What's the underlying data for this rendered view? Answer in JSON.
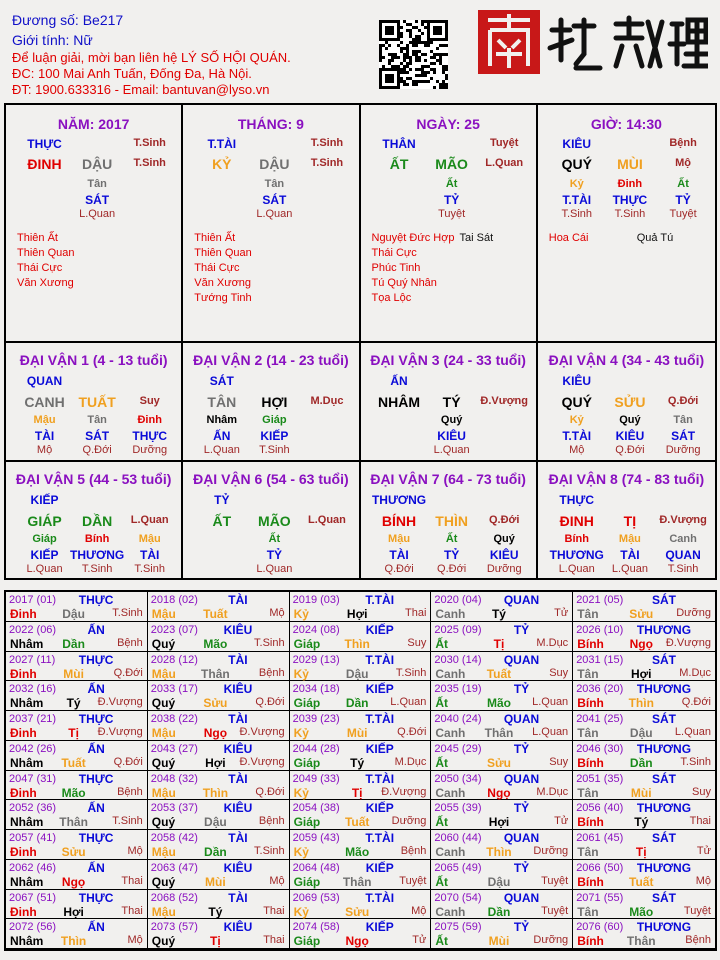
{
  "header": {
    "code": "Đương số: Be217",
    "gender": "Giới tính:   Nữ",
    "line1": "Để luận giải, mời bạn liên hệ LÝ SỐ HỘI QUÁN.",
    "line2": "ĐC: 100 Mai Anh Tuấn, Đống Đa, Hà Nội.",
    "line3": "ĐT: 1900.633316 - Email: bantuvan@lyso.vn",
    "logo_text": "南越數理",
    "qr_icon": "qr-code-icon"
  },
  "colors": {
    "god": "#0a0ad8",
    "stage": "#a02828",
    "title": "#8a10c0",
    "elements": {
      "đinh": "#e00000",
      "bính": "#e00000",
      "tị": "#e00000",
      "ngọ": "#e00000",
      "mậu": "#f0a020",
      "kỷ": "#f0a020",
      "thìn": "#f0a020",
      "tuất": "#f0a020",
      "sửu": "#f0a020",
      "mùi": "#f0a020",
      "canh": "#707070",
      "tân": "#707070",
      "thân": "#707070",
      "dậu": "#707070",
      "nhâm": "#000000",
      "quý": "#000000",
      "tý": "#000000",
      "hợi": "#000000",
      "giáp": "#1a8a1a",
      "ất": "#1a8a1a",
      "dần": "#1a8a1a",
      "mão": "#1a8a1a"
    }
  },
  "pillars": [
    {
      "title": "NĂM: 2017",
      "god": "THỰC",
      "stage_top": "T.Sinh",
      "stem": "ĐINH",
      "branch": "DẬU",
      "stage": "T.Sinh",
      "hidden": [
        {
          "stem": "Tân",
          "god": "SÁT",
          "stage": "L.Quan"
        }
      ],
      "stars_red": [
        "Thiên Ất",
        "Thiên Quan",
        "Thái Cực",
        "Văn Xương"
      ],
      "stars_black": []
    },
    {
      "title": "THÁNG: 9",
      "god": "T.TÀI",
      "stage_top": "T.Sinh",
      "stem": "KỶ",
      "branch": "DẬU",
      "stage": "T.Sinh",
      "hidden": [
        {
          "stem": "Tân",
          "god": "SÁT",
          "stage": "L.Quan"
        }
      ],
      "stars_red": [
        "Thiên Ất",
        "Thiên Quan",
        "Thái Cực",
        "Văn Xương",
        "Tướng Tinh"
      ],
      "stars_black": []
    },
    {
      "title": "NGÀY: 25",
      "god": "THÂN",
      "stage_top": "Tuyệt",
      "stem": "ẤT",
      "branch": "MÃO",
      "stage": "L.Quan",
      "hidden": [
        {
          "stem": "Ất",
          "god": "TỶ",
          "stage": "Tuyệt"
        }
      ],
      "stars_red": [
        "Nguyệt Đức Hợp",
        "Thái Cực",
        "Phúc Tinh",
        "Tú Quý Nhân",
        "Tọa Lộc"
      ],
      "stars_black": [
        "Tai Sát"
      ]
    },
    {
      "title": "GIỜ: 14:30",
      "god": "KIÊU",
      "stage_top": "Bệnh",
      "stem": "QUÝ",
      "branch": "MÙI",
      "stage": "Mộ",
      "hidden": [
        {
          "stem": "Kỷ",
          "god": "T.TÀI",
          "stage": "T.Sinh"
        },
        {
          "stem": "Đinh",
          "god": "THỰC",
          "stage": "T.Sinh"
        },
        {
          "stem": "Ất",
          "god": "TỶ",
          "stage": "Tuyệt"
        }
      ],
      "stars_red": [
        "Hoa Cái"
      ],
      "stars_black": [
        "Quả Tú"
      ]
    }
  ],
  "dai_van": [
    {
      "title": "ĐẠI VẬN 1 (4 - 13 tuổi)",
      "god": "QUAN",
      "stem": "CANH",
      "branch": "TUẤT",
      "stage": "Suy",
      "hidden": [
        {
          "stem": "Mậu",
          "god": "TÀI",
          "stage": "Mộ"
        },
        {
          "stem": "Tân",
          "god": "SÁT",
          "stage": "Q.Đới"
        },
        {
          "stem": "Đinh",
          "god": "THỰC",
          "stage": "Dưỡng"
        }
      ]
    },
    {
      "title": "ĐẠI VẬN 2 (14 - 23 tuổi)",
      "god": "SÁT",
      "stem": "TÂN",
      "branch": "HỢI",
      "stage": "M.Dục",
      "hidden": [
        {
          "stem": "Nhâm",
          "god": "ẤN",
          "stage": "L.Quan"
        },
        {
          "stem": "Giáp",
          "god": "KIẾP",
          "stage": "T.Sinh"
        }
      ]
    },
    {
      "title": "ĐẠI VẬN 3 (24 - 33 tuổi)",
      "god": "ẤN",
      "stem": "NHÂM",
      "branch": "TÝ",
      "stage": "Đ.Vượng",
      "hidden": [
        {
          "stem": "Quý",
          "god": "KIÊU",
          "stage": "L.Quan"
        }
      ]
    },
    {
      "title": "ĐẠI VẬN 4 (34 - 43 tuổi)",
      "god": "KIÊU",
      "stem": "QUÝ",
      "branch": "SỬU",
      "stage": "Q.Đới",
      "hidden": [
        {
          "stem": "Kỷ",
          "god": "T.TÀI",
          "stage": "Mộ"
        },
        {
          "stem": "Quý",
          "god": "KIÊU",
          "stage": "Q.Đới"
        },
        {
          "stem": "Tân",
          "god": "SÁT",
          "stage": "Dưỡng"
        }
      ]
    },
    {
      "title": "ĐẠI VẬN 5 (44 - 53 tuổi)",
      "god": "KIẾP",
      "stem": "GIÁP",
      "branch": "DẦN",
      "stage": "L.Quan",
      "hidden": [
        {
          "stem": "Giáp",
          "god": "KIẾP",
          "stage": "L.Quan"
        },
        {
          "stem": "Bính",
          "god": "THƯƠNG",
          "stage": "T.Sinh"
        },
        {
          "stem": "Mậu",
          "god": "TÀI",
          "stage": "T.Sinh"
        }
      ]
    },
    {
      "title": "ĐẠI VẬN 6 (54 - 63 tuổi)",
      "god": "TỶ",
      "stem": "ẤT",
      "branch": "MÃO",
      "stage": "L.Quan",
      "hidden": [
        {
          "stem": "Ất",
          "god": "TỶ",
          "stage": "L.Quan"
        }
      ]
    },
    {
      "title": "ĐẠI VẬN 7 (64 - 73 tuổi)",
      "god": "THƯƠNG",
      "stem": "BÍNH",
      "branch": "THÌN",
      "stage": "Q.Đới",
      "hidden": [
        {
          "stem": "Mậu",
          "god": "TÀI",
          "stage": "Q.Đới"
        },
        {
          "stem": "Ất",
          "god": "TỶ",
          "stage": "Q.Đới"
        },
        {
          "stem": "Quý",
          "god": "KIÊU",
          "stage": "Dưỡng"
        }
      ]
    },
    {
      "title": "ĐẠI VẬN 8 (74 - 83 tuổi)",
      "god": "THỰC",
      "stem": "ĐINH",
      "branch": "TỊ",
      "stage": "Đ.Vượng",
      "hidden": [
        {
          "stem": "Bính",
          "god": "THƯƠNG",
          "stage": "L.Quan"
        },
        {
          "stem": "Mậu",
          "god": "TÀI",
          "stage": "L.Quan"
        },
        {
          "stem": "Canh",
          "god": "QUAN",
          "stage": "T.Sinh"
        }
      ]
    }
  ],
  "years": [
    [
      "2017 (01)",
      "THỰC",
      "Đinh",
      "Dậu",
      "T.Sinh"
    ],
    [
      "2018 (02)",
      "TÀI",
      "Mậu",
      "Tuất",
      "Mộ"
    ],
    [
      "2019 (03)",
      "T.TÀI",
      "Kỷ",
      "Hợi",
      "Thai"
    ],
    [
      "2020 (04)",
      "QUAN",
      "Canh",
      "Tý",
      "Tử"
    ],
    [
      "2021 (05)",
      "SÁT",
      "Tân",
      "Sửu",
      "Dưỡng"
    ],
    [
      "2022 (06)",
      "ẤN",
      "Nhâm",
      "Dần",
      "Bệnh"
    ],
    [
      "2023 (07)",
      "KIÊU",
      "Quý",
      "Mão",
      "T.Sinh"
    ],
    [
      "2024 (08)",
      "KIẾP",
      "Giáp",
      "Thìn",
      "Suy"
    ],
    [
      "2025 (09)",
      "TỶ",
      "Ất",
      "Tị",
      "M.Dục"
    ],
    [
      "2026 (10)",
      "THƯƠNG",
      "Bính",
      "Ngọ",
      "Đ.Vượng"
    ],
    [
      "2027 (11)",
      "THỰC",
      "Đinh",
      "Mùi",
      "Q.Đới"
    ],
    [
      "2028 (12)",
      "TÀI",
      "Mậu",
      "Thân",
      "Bệnh"
    ],
    [
      "2029 (13)",
      "T.TÀI",
      "Kỷ",
      "Dậu",
      "T.Sinh"
    ],
    [
      "2030 (14)",
      "QUAN",
      "Canh",
      "Tuất",
      "Suy"
    ],
    [
      "2031 (15)",
      "SÁT",
      "Tân",
      "Hợi",
      "M.Dục"
    ],
    [
      "2032 (16)",
      "ẤN",
      "Nhâm",
      "Tý",
      "Đ.Vượng"
    ],
    [
      "2033 (17)",
      "KIÊU",
      "Quý",
      "Sửu",
      "Q.Đới"
    ],
    [
      "2034 (18)",
      "KIẾP",
      "Giáp",
      "Dần",
      "L.Quan"
    ],
    [
      "2035 (19)",
      "TỶ",
      "Ất",
      "Mão",
      "L.Quan"
    ],
    [
      "2036 (20)",
      "THƯƠNG",
      "Bính",
      "Thìn",
      "Q.Đới"
    ],
    [
      "2037 (21)",
      "THỰC",
      "Đinh",
      "Tị",
      "Đ.Vượng"
    ],
    [
      "2038 (22)",
      "TÀI",
      "Mậu",
      "Ngọ",
      "Đ.Vượng"
    ],
    [
      "2039 (23)",
      "T.TÀI",
      "Kỷ",
      "Mùi",
      "Q.Đới"
    ],
    [
      "2040 (24)",
      "QUAN",
      "Canh",
      "Thân",
      "L.Quan"
    ],
    [
      "2041 (25)",
      "SÁT",
      "Tân",
      "Dậu",
      "L.Quan"
    ],
    [
      "2042 (26)",
      "ẤN",
      "Nhâm",
      "Tuất",
      "Q.Đới"
    ],
    [
      "2043 (27)",
      "KIÊU",
      "Quý",
      "Hợi",
      "Đ.Vượng"
    ],
    [
      "2044 (28)",
      "KIẾP",
      "Giáp",
      "Tý",
      "M.Dục"
    ],
    [
      "2045 (29)",
      "TỶ",
      "Ất",
      "Sửu",
      "Suy"
    ],
    [
      "2046 (30)",
      "THƯƠNG",
      "Bính",
      "Dần",
      "T.Sinh"
    ],
    [
      "2047 (31)",
      "THỰC",
      "Đinh",
      "Mão",
      "Bệnh"
    ],
    [
      "2048 (32)",
      "TÀI",
      "Mậu",
      "Thìn",
      "Q.Đới"
    ],
    [
      "2049 (33)",
      "T.TÀI",
      "Kỷ",
      "Tị",
      "Đ.Vượng"
    ],
    [
      "2050 (34)",
      "QUAN",
      "Canh",
      "Ngọ",
      "M.Dục"
    ],
    [
      "2051 (35)",
      "SÁT",
      "Tân",
      "Mùi",
      "Suy"
    ],
    [
      "2052 (36)",
      "ẤN",
      "Nhâm",
      "Thân",
      "T.Sinh"
    ],
    [
      "2053 (37)",
      "KIÊU",
      "Quý",
      "Dậu",
      "Bệnh"
    ],
    [
      "2054 (38)",
      "KIẾP",
      "Giáp",
      "Tuất",
      "Dưỡng"
    ],
    [
      "2055 (39)",
      "TỶ",
      "Ất",
      "Hợi",
      "Tử"
    ],
    [
      "2056 (40)",
      "THƯƠNG",
      "Bính",
      "Tý",
      "Thai"
    ],
    [
      "2057 (41)",
      "THỰC",
      "Đinh",
      "Sửu",
      "Mộ"
    ],
    [
      "2058 (42)",
      "TÀI",
      "Mậu",
      "Dần",
      "T.Sinh"
    ],
    [
      "2059 (43)",
      "T.TÀI",
      "Kỷ",
      "Mão",
      "Bệnh"
    ],
    [
      "2060 (44)",
      "QUAN",
      "Canh",
      "Thìn",
      "Dưỡng"
    ],
    [
      "2061 (45)",
      "SÁT",
      "Tân",
      "Tị",
      "Tử"
    ],
    [
      "2062 (46)",
      "ẤN",
      "Nhâm",
      "Ngọ",
      "Thai"
    ],
    [
      "2063 (47)",
      "KIÊU",
      "Quý",
      "Mùi",
      "Mộ"
    ],
    [
      "2064 (48)",
      "KIẾP",
      "Giáp",
      "Thân",
      "Tuyệt"
    ],
    [
      "2065 (49)",
      "TỶ",
      "Ất",
      "Dậu",
      "Tuyệt"
    ],
    [
      "2066 (50)",
      "THƯƠNG",
      "Bính",
      "Tuất",
      "Mộ"
    ],
    [
      "2067 (51)",
      "THỰC",
      "Đinh",
      "Hợi",
      "Thai"
    ],
    [
      "2068 (52)",
      "TÀI",
      "Mậu",
      "Tý",
      "Thai"
    ],
    [
      "2069 (53)",
      "T.TÀI",
      "Kỷ",
      "Sửu",
      "Mộ"
    ],
    [
      "2070 (54)",
      "QUAN",
      "Canh",
      "Dần",
      "Tuyệt"
    ],
    [
      "2071 (55)",
      "SÁT",
      "Tân",
      "Mão",
      "Tuyệt"
    ],
    [
      "2072 (56)",
      "ẤN",
      "Nhâm",
      "Thìn",
      "Mộ"
    ],
    [
      "2073 (57)",
      "KIÊU",
      "Quý",
      "Tị",
      "Thai"
    ],
    [
      "2074 (58)",
      "KIẾP",
      "Giáp",
      "Ngọ",
      "Tử"
    ],
    [
      "2075 (59)",
      "TỶ",
      "Ất",
      "Mùi",
      "Dưỡng"
    ],
    [
      "2076 (60)",
      "THƯƠNG",
      "Bính",
      "Thân",
      "Bệnh"
    ]
  ]
}
